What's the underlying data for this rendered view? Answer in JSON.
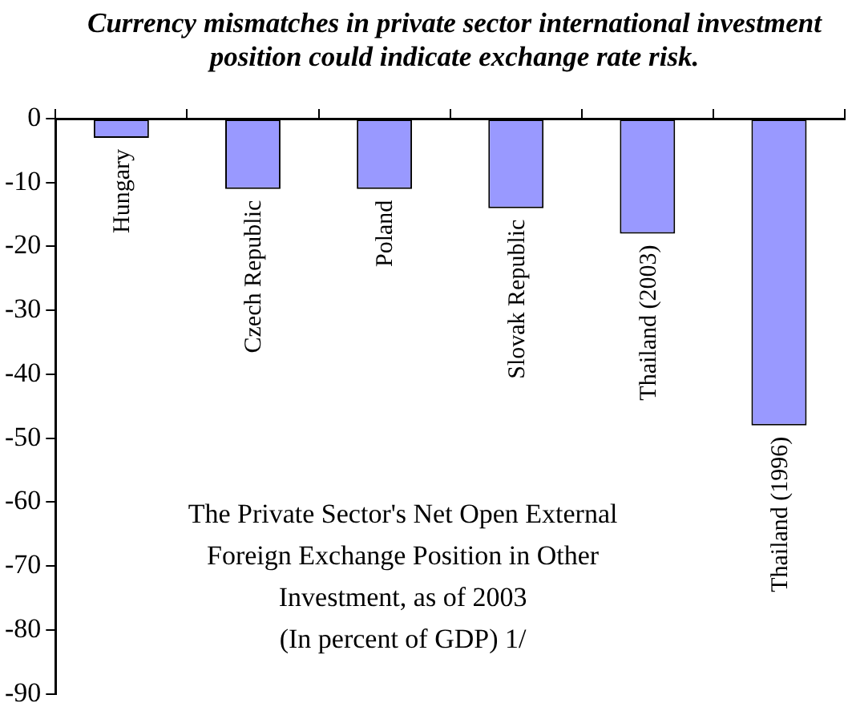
{
  "chart_data": {
    "type": "bar",
    "title": "Currency mismatches in private sector international investment position could indicate exchange rate risk.",
    "categories": [
      "Hungary",
      "Czech Republic",
      "Poland",
      "Slovak Republic",
      "Thailand (2003)",
      "Thailand (1996)"
    ],
    "values": [
      -3,
      -11,
      -11,
      -14,
      -18,
      -48
    ],
    "color": "#9999ff",
    "ylim": [
      -90,
      0
    ],
    "yticks": [
      -90,
      -80,
      -70,
      -60,
      -50,
      -40,
      -30,
      -20,
      -10,
      0
    ],
    "grid": false,
    "annotations": [
      "The Private Sector's Net Open External\nForeign Exchange Position in Other\nInvestment, as of 2003\n(In percent of GDP) 1/"
    ]
  }
}
